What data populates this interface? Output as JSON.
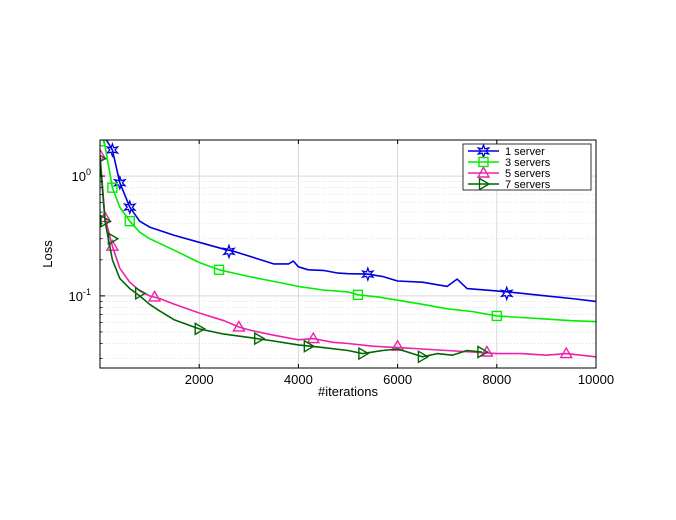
{
  "chart_data": {
    "type": "line",
    "xlabel": "#iterations",
    "ylabel": "Loss",
    "xlim": [
      0,
      10000
    ],
    "ylim": [
      0.025,
      2.0
    ],
    "yscale": "log",
    "x_ticks": [
      2000,
      4000,
      6000,
      8000,
      10000
    ],
    "x_tick_labels": [
      "2000",
      "4000",
      "6000",
      "8000",
      "10000"
    ],
    "y_ticks": [
      0.1,
      1
    ],
    "y_tick_labels": [
      {
        "base": "10",
        "exp": "-1"
      },
      {
        "base": "10",
        "exp": "0"
      }
    ],
    "grid": true,
    "legend_position": "top-right",
    "series": [
      {
        "name": "1 server",
        "color": "#0000dd",
        "marker": "star",
        "points": [
          [
            0,
            2.6
          ],
          [
            100,
            2.1
          ],
          [
            250,
            1.65
          ],
          [
            400,
            0.88
          ],
          [
            600,
            0.55
          ],
          [
            800,
            0.42
          ],
          [
            1000,
            0.375
          ],
          [
            1500,
            0.32
          ],
          [
            2000,
            0.28
          ],
          [
            2500,
            0.245
          ],
          [
            2700,
            0.235
          ],
          [
            3000,
            0.215
          ],
          [
            3500,
            0.185
          ],
          [
            3800,
            0.185
          ],
          [
            3900,
            0.195
          ],
          [
            4000,
            0.175
          ],
          [
            4200,
            0.165
          ],
          [
            4500,
            0.163
          ],
          [
            4800,
            0.155
          ],
          [
            5000,
            0.153
          ],
          [
            5400,
            0.152
          ],
          [
            5700,
            0.145
          ],
          [
            6000,
            0.133
          ],
          [
            6500,
            0.13
          ],
          [
            7000,
            0.12
          ],
          [
            7200,
            0.138
          ],
          [
            7400,
            0.115
          ],
          [
            8000,
            0.11
          ],
          [
            8500,
            0.105
          ],
          [
            9000,
            0.1
          ],
          [
            9500,
            0.095
          ],
          [
            10000,
            0.09
          ]
        ],
        "marker_points": [
          [
            250,
            1.65
          ],
          [
            400,
            0.88
          ],
          [
            600,
            0.55
          ],
          [
            2600,
            0.235
          ],
          [
            5400,
            0.152
          ],
          [
            8200,
            0.105
          ]
        ]
      },
      {
        "name": "3 servers",
        "color": "#00ee00",
        "marker": "square",
        "points": [
          [
            0,
            2.4
          ],
          [
            100,
            1.8
          ],
          [
            250,
            0.8
          ],
          [
            400,
            0.55
          ],
          [
            600,
            0.42
          ],
          [
            800,
            0.34
          ],
          [
            1000,
            0.3
          ],
          [
            1500,
            0.24
          ],
          [
            2000,
            0.19
          ],
          [
            2400,
            0.165
          ],
          [
            3000,
            0.145
          ],
          [
            3500,
            0.132
          ],
          [
            4000,
            0.12
          ],
          [
            4500,
            0.112
          ],
          [
            5000,
            0.108
          ],
          [
            5200,
            0.102
          ],
          [
            5600,
            0.098
          ],
          [
            6000,
            0.092
          ],
          [
            6500,
            0.085
          ],
          [
            7000,
            0.078
          ],
          [
            7500,
            0.074
          ],
          [
            8000,
            0.068
          ],
          [
            8500,
            0.066
          ],
          [
            9000,
            0.064
          ],
          [
            9500,
            0.062
          ],
          [
            10000,
            0.061
          ]
        ],
        "marker_points": [
          [
            0,
            1.95
          ],
          [
            250,
            0.8
          ],
          [
            600,
            0.42
          ],
          [
            2400,
            0.165
          ],
          [
            5200,
            0.102
          ],
          [
            8000,
            0.068
          ]
        ]
      },
      {
        "name": "5 servers",
        "color": "#ee22aa",
        "marker": "triangle-up",
        "points": [
          [
            0,
            1.5
          ],
          [
            100,
            0.45
          ],
          [
            250,
            0.26
          ],
          [
            400,
            0.17
          ],
          [
            600,
            0.13
          ],
          [
            800,
            0.11
          ],
          [
            1000,
            0.1
          ],
          [
            1200,
            0.095
          ],
          [
            1500,
            0.085
          ],
          [
            2000,
            0.072
          ],
          [
            2500,
            0.062
          ],
          [
            2800,
            0.055
          ],
          [
            3000,
            0.052
          ],
          [
            3500,
            0.047
          ],
          [
            4000,
            0.043
          ],
          [
            4300,
            0.044
          ],
          [
            4700,
            0.041
          ],
          [
            5000,
            0.04
          ],
          [
            5500,
            0.038
          ],
          [
            6000,
            0.037
          ],
          [
            6500,
            0.036
          ],
          [
            7000,
            0.035
          ],
          [
            7500,
            0.034
          ],
          [
            8000,
            0.033
          ],
          [
            8500,
            0.033
          ],
          [
            9000,
            0.032
          ],
          [
            9400,
            0.033
          ],
          [
            10000,
            0.031
          ]
        ],
        "marker_points": [
          [
            0,
            1.5
          ],
          [
            100,
            0.45
          ],
          [
            250,
            0.26
          ],
          [
            1100,
            0.098
          ],
          [
            2800,
            0.055
          ],
          [
            4300,
            0.044
          ],
          [
            6000,
            0.038
          ],
          [
            7800,
            0.034
          ],
          [
            9400,
            0.033
          ]
        ]
      },
      {
        "name": "7 servers",
        "color": "#006600",
        "marker": "triangle-right",
        "points": [
          [
            0,
            1.4
          ],
          [
            100,
            0.42
          ],
          [
            250,
            0.2
          ],
          [
            400,
            0.14
          ],
          [
            600,
            0.115
          ],
          [
            800,
            0.1
          ],
          [
            1000,
            0.085
          ],
          [
            1200,
            0.075
          ],
          [
            1500,
            0.063
          ],
          [
            2000,
            0.053
          ],
          [
            2500,
            0.048
          ],
          [
            3000,
            0.045
          ],
          [
            3500,
            0.042
          ],
          [
            4000,
            0.039
          ],
          [
            4500,
            0.037
          ],
          [
            5000,
            0.035
          ],
          [
            5300,
            0.033
          ],
          [
            5700,
            0.035
          ],
          [
            6000,
            0.036
          ],
          [
            6200,
            0.034
          ],
          [
            6500,
            0.031
          ],
          [
            6800,
            0.033
          ],
          [
            7100,
            0.032
          ],
          [
            7400,
            0.035
          ],
          [
            7700,
            0.034
          ]
        ],
        "marker_points": [
          [
            0,
            1.4
          ],
          [
            100,
            0.42
          ],
          [
            250,
            0.3
          ],
          [
            800,
            0.105
          ],
          [
            2000,
            0.053
          ],
          [
            3200,
            0.044
          ],
          [
            4200,
            0.038
          ],
          [
            5300,
            0.033
          ],
          [
            6500,
            0.031
          ],
          [
            7700,
            0.034
          ]
        ]
      }
    ]
  }
}
